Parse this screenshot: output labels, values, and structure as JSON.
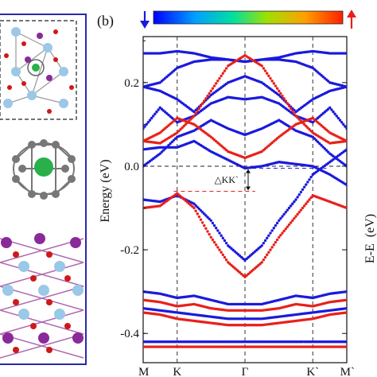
{
  "figure": {
    "panel_label": "(b)",
    "right_axis_label": "E-E",
    "right_axis_unit": "(eV)"
  },
  "colors": {
    "spin_down": "#1a1adc",
    "spin_up": "#e8201a",
    "frame_left": "#2a2aa8",
    "fermi_line": "#222222",
    "gap_line": "#e8201a"
  },
  "chart_data": {
    "type": "line",
    "ylabel": "Energy (eV)",
    "ylim": [
      -0.47,
      0.31
    ],
    "yticks": [
      -0.4,
      -0.2,
      0.0,
      0.2
    ],
    "ytick_labels": [
      "-0.4",
      "-0.2",
      "0.0",
      "0.2"
    ],
    "xlim": [
      0,
      1
    ],
    "k_points": [
      {
        "label": "M",
        "x": 0.0
      },
      {
        "label": "K",
        "x": 0.167
      },
      {
        "label": "Γ",
        "x": 0.5
      },
      {
        "label": "K`",
        "x": 0.833
      },
      {
        "label": "M`",
        "x": 1.0
      }
    ],
    "annotation": {
      "text": "△KK`",
      "x": 0.5,
      "y_top": -0.005,
      "y_bottom": -0.06
    },
    "colorbar": {
      "colors": [
        "#0000ff",
        "#00a0ff",
        "#00e0a0",
        "#a0e000",
        "#ffa000",
        "#ff2000"
      ]
    },
    "series": [
      {
        "color": "blue",
        "x": [
          0,
          0.083,
          0.167,
          0.25,
          0.333,
          0.417,
          0.5,
          0.583,
          0.667,
          0.75,
          0.833,
          0.917,
          1
        ],
        "y": [
          0.27,
          0.27,
          0.275,
          0.27,
          0.26,
          0.255,
          0.25,
          0.255,
          0.26,
          0.27,
          0.275,
          0.27,
          0.27
        ]
      },
      {
        "color": "blue",
        "x": [
          0,
          0.083,
          0.167,
          0.25,
          0.333,
          0.417,
          0.5,
          0.583,
          0.667,
          0.75,
          0.833,
          0.917,
          1
        ],
        "y": [
          0.19,
          0.2,
          0.235,
          0.25,
          0.255,
          0.255,
          0.25,
          0.255,
          0.255,
          0.25,
          0.235,
          0.2,
          0.19
        ]
      },
      {
        "color": "blue",
        "x": [
          0,
          0.083,
          0.167,
          0.25,
          0.333,
          0.417,
          0.5,
          0.583,
          0.667,
          0.75,
          0.833,
          0.917,
          1
        ],
        "y": [
          0.19,
          0.18,
          0.16,
          0.13,
          0.17,
          0.2,
          0.215,
          0.2,
          0.17,
          0.13,
          0.16,
          0.18,
          0.19
        ]
      },
      {
        "color": "blue",
        "x": [
          0,
          0.083,
          0.167,
          0.25,
          0.333,
          0.417,
          0.5,
          0.583,
          0.667,
          0.75,
          0.833,
          0.917,
          1
        ],
        "y": [
          0.09,
          0.14,
          0.105,
          0.12,
          0.15,
          0.165,
          0.16,
          0.165,
          0.15,
          0.12,
          0.105,
          0.14,
          0.09
        ]
      },
      {
        "color": "blue",
        "x": [
          0,
          0.083,
          0.167,
          0.25,
          0.333,
          0.417,
          0.5,
          0.583,
          0.667,
          0.75,
          0.833,
          0.917,
          1
        ],
        "y": [
          0.0,
          0.03,
          0.07,
          0.085,
          0.11,
          0.09,
          0.075,
          0.09,
          0.11,
          0.085,
          0.07,
          0.03,
          0.0
        ]
      },
      {
        "color": "red",
        "x": [
          0,
          0.083,
          0.167,
          0.25,
          0.333,
          0.417,
          0.5,
          0.583,
          0.667,
          0.75,
          0.833,
          0.917,
          1
        ],
        "y": [
          0.06,
          0.055,
          0.08,
          0.12,
          0.18,
          0.24,
          0.265,
          0.24,
          0.18,
          0.12,
          0.08,
          0.055,
          0.06
        ]
      },
      {
        "color": "red",
        "x": [
          0,
          0.083,
          0.167,
          0.25,
          0.333,
          0.417,
          0.5,
          0.583,
          0.667,
          0.75,
          0.833,
          0.917,
          1
        ],
        "y": [
          0.06,
          0.08,
          0.115,
          0.1,
          0.07,
          0.035,
          0.02,
          0.035,
          0.07,
          0.1,
          0.115,
          0.08,
          0.06
        ]
      },
      {
        "color": "blue",
        "x": [
          0,
          0.083,
          0.167,
          0.25,
          0.333,
          0.417,
          0.5,
          0.583,
          0.667,
          0.75,
          0.833,
          0.917,
          1
        ],
        "y": [
          0.04,
          0.045,
          0.045,
          0.06,
          0.035,
          0.015,
          -0.005,
          0.0,
          0.01,
          0.005,
          0.0,
          -0.02,
          -0.045
        ]
      },
      {
        "color": "blue",
        "x": [
          0,
          0.083,
          0.167,
          0.25,
          0.333,
          0.417,
          0.5,
          0.583,
          0.667,
          0.75,
          0.833,
          0.917,
          1
        ],
        "y": [
          -0.08,
          -0.085,
          -0.07,
          -0.09,
          -0.13,
          -0.19,
          -0.225,
          -0.19,
          -0.13,
          -0.08,
          -0.02,
          0.01,
          0.04
        ]
      },
      {
        "color": "red",
        "x": [
          0,
          0.083,
          0.167,
          0.25,
          0.333,
          0.417,
          0.5,
          0.583,
          0.667,
          0.75,
          0.833,
          0.917,
          1
        ],
        "y": [
          -0.1,
          -0.095,
          -0.065,
          -0.1,
          -0.17,
          -0.23,
          -0.265,
          -0.23,
          -0.17,
          -0.12,
          -0.07,
          -0.085,
          -0.1
        ]
      },
      {
        "color": "blue",
        "x": [
          0,
          0.083,
          0.167,
          0.25,
          0.333,
          0.417,
          0.5,
          0.583,
          0.667,
          0.75,
          0.833,
          0.917,
          1
        ],
        "y": [
          -0.3,
          -0.305,
          -0.315,
          -0.31,
          -0.32,
          -0.33,
          -0.33,
          -0.33,
          -0.32,
          -0.31,
          -0.315,
          -0.305,
          -0.3
        ]
      },
      {
        "color": "red",
        "x": [
          0,
          0.083,
          0.167,
          0.25,
          0.333,
          0.417,
          0.5,
          0.583,
          0.667,
          0.75,
          0.833,
          0.917,
          1
        ],
        "y": [
          -0.32,
          -0.325,
          -0.335,
          -0.33,
          -0.34,
          -0.345,
          -0.345,
          -0.345,
          -0.34,
          -0.33,
          -0.335,
          -0.325,
          -0.32
        ]
      },
      {
        "color": "blue",
        "x": [
          0,
          0.083,
          0.167,
          0.25,
          0.333,
          0.417,
          0.5,
          0.583,
          0.667,
          0.75,
          0.833,
          0.917,
          1
        ],
        "y": [
          -0.34,
          -0.345,
          -0.35,
          -0.355,
          -0.36,
          -0.365,
          -0.365,
          -0.365,
          -0.36,
          -0.355,
          -0.35,
          -0.345,
          -0.34
        ]
      },
      {
        "color": "red",
        "x": [
          0,
          0.083,
          0.167,
          0.25,
          0.333,
          0.417,
          0.5,
          0.583,
          0.667,
          0.75,
          0.833,
          0.917,
          1
        ],
        "y": [
          -0.35,
          -0.355,
          -0.365,
          -0.37,
          -0.375,
          -0.38,
          -0.38,
          -0.38,
          -0.375,
          -0.37,
          -0.365,
          -0.355,
          -0.35
        ]
      },
      {
        "color": "blue",
        "x": [
          0,
          0.083,
          0.167,
          0.25,
          0.333,
          0.417,
          0.5,
          0.583,
          0.667,
          0.75,
          0.833,
          0.917,
          1
        ],
        "y": [
          -0.42,
          -0.42,
          -0.42,
          -0.42,
          -0.42,
          -0.42,
          -0.42,
          -0.42,
          -0.42,
          -0.42,
          -0.42,
          -0.42,
          -0.42
        ]
      },
      {
        "color": "red",
        "x": [
          0,
          0.083,
          0.167,
          0.25,
          0.333,
          0.417,
          0.5,
          0.583,
          0.667,
          0.75,
          0.833,
          0.917,
          1
        ],
        "y": [
          -0.432,
          -0.432,
          -0.432,
          -0.432,
          -0.432,
          -0.432,
          -0.432,
          -0.432,
          -0.432,
          -0.432,
          -0.432,
          -0.432,
          -0.432
        ]
      }
    ]
  }
}
